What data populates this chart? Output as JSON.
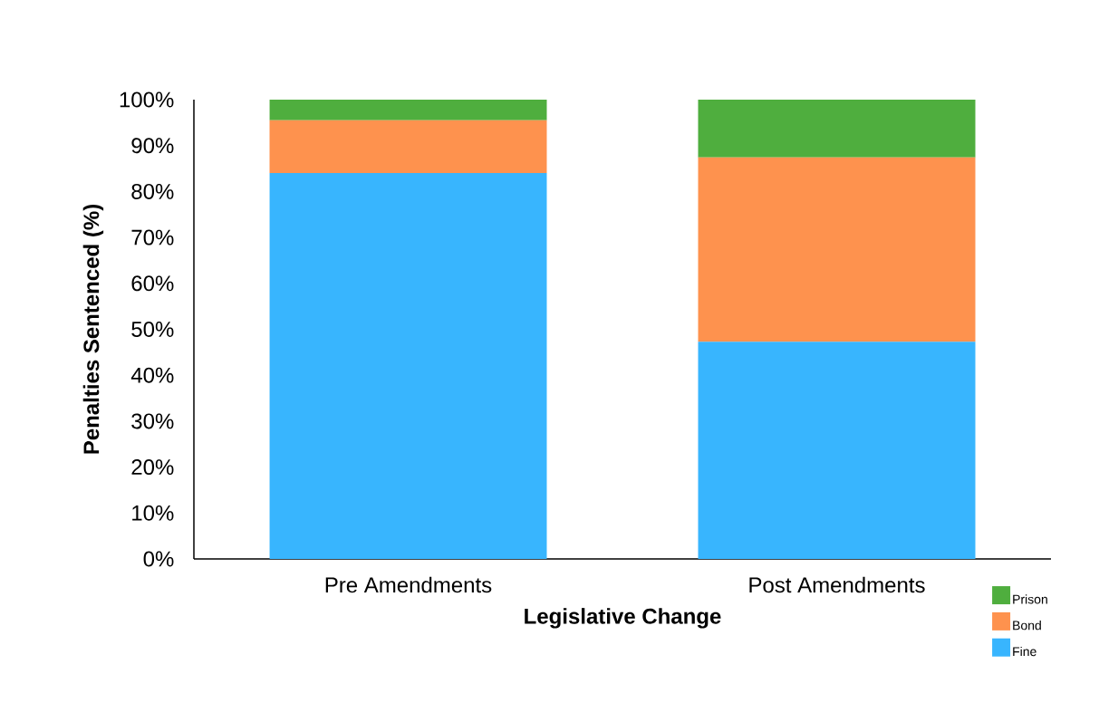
{
  "chart_data": {
    "type": "bar",
    "stacked": true,
    "xlabel": "Legislative Change",
    "ylabel": "Penalties Sentenced (%)",
    "categories": [
      "Pre Amendments",
      "Post Amendments"
    ],
    "series": [
      {
        "name": "Fine",
        "color": "#38b5fe",
        "values": [
          84,
          47.3
        ]
      },
      {
        "name": "Bond",
        "color": "#fe924e",
        "values": [
          11.5,
          40.1
        ]
      },
      {
        "name": "Prison",
        "color": "#4fae3e",
        "values": [
          4.5,
          12.6
        ]
      }
    ],
    "ylim": [
      0,
      100
    ],
    "yticks": [
      {
        "value": 0,
        "label": "0%"
      },
      {
        "value": 10,
        "label": "10%"
      },
      {
        "value": 20,
        "label": "20%"
      },
      {
        "value": 30,
        "label": "30%"
      },
      {
        "value": 40,
        "label": "40%"
      },
      {
        "value": 50,
        "label": "50%"
      },
      {
        "value": 60,
        "label": "60%"
      },
      {
        "value": 70,
        "label": "70%"
      },
      {
        "value": 80,
        "label": "80%"
      },
      {
        "value": 90,
        "label": "90%"
      },
      {
        "value": 100,
        "label": "100%"
      }
    ],
    "legend": "bottom right"
  }
}
